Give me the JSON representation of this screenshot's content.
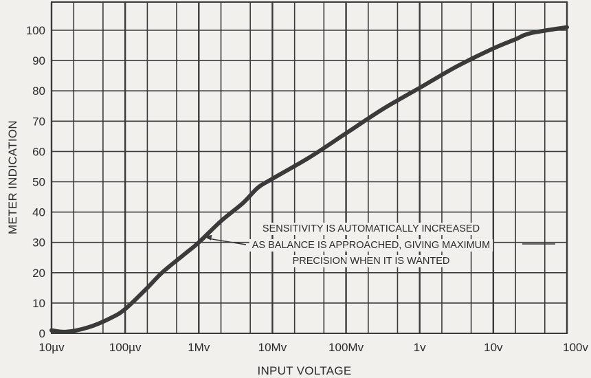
{
  "chart_data": {
    "type": "line",
    "title": "",
    "xlabel": "INPUT VOLTAGE",
    "ylabel": "METER INDICATION",
    "x_scale": "log",
    "x_tick_labels": [
      "10µv",
      "100µv",
      "1Mv",
      "10Mv",
      "100Mv",
      "1v",
      "10v",
      "100v"
    ],
    "y_ticks": [
      0,
      10,
      20,
      30,
      40,
      50,
      60,
      70,
      80,
      90,
      100
    ],
    "ylim": [
      0,
      100
    ],
    "grid": true,
    "series": [
      {
        "x_decade": [
          0.0,
          0.2,
          0.5,
          0.8,
          1.0,
          1.3,
          1.5,
          1.8,
          2.0,
          2.3,
          2.6,
          2.8,
          3.0,
          3.5,
          4.0,
          4.5,
          5.0,
          5.5,
          6.0,
          6.3,
          6.5,
          7.0
        ],
        "y": [
          1,
          0.5,
          2,
          5,
          8,
          15,
          20,
          26,
          30,
          37,
          43,
          48,
          51,
          58,
          66,
          74,
          81,
          88,
          94,
          97,
          99,
          101
        ]
      }
    ],
    "annotation": {
      "lines": [
        "SENSITIVITY IS AUTOMATICALLY INCREASED",
        "AS BALANCE IS APPROACHED, GIVING MAXIMUM",
        "PRECISION WHEN IT IS WANTED"
      ],
      "points_to": {
        "x_decade": 2.08,
        "y": 32
      }
    },
    "colors": {
      "curve": "#3a3a3a",
      "grid": "#3a3a3a",
      "background": "#f1f0ec"
    }
  }
}
